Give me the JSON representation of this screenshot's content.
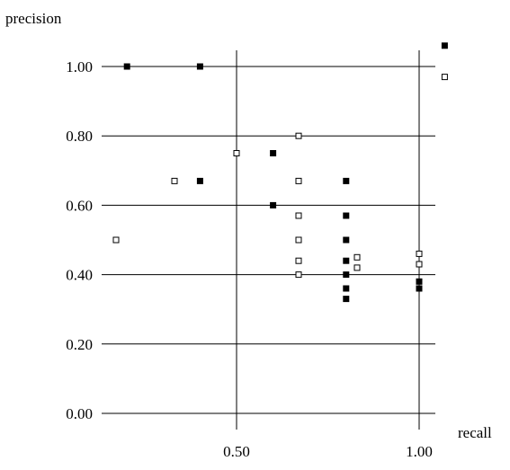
{
  "chart_data": {
    "type": "scatter",
    "title": "",
    "xlabel": "recall",
    "ylabel": "precision",
    "xlim": [
      0.13,
      1.09
    ],
    "ylim": [
      0.0,
      1.0
    ],
    "grid": true,
    "x_ticks": [
      {
        "value": 0.5,
        "label": "0.50"
      },
      {
        "value": 1.0,
        "label": "1.00"
      }
    ],
    "y_ticks": [
      {
        "value": 0.0,
        "label": "0.00"
      },
      {
        "value": 0.2,
        "label": "0.20"
      },
      {
        "value": 0.4,
        "label": "0.40"
      },
      {
        "value": 0.6,
        "label": "0.60"
      },
      {
        "value": 0.8,
        "label": "0.80"
      },
      {
        "value": 1.0,
        "label": "1.00"
      }
    ],
    "series": [
      {
        "marker": "filled-square",
        "color": "#000000",
        "points": [
          {
            "x": 0.2,
            "y": 1.0
          },
          {
            "x": 0.4,
            "y": 1.0
          },
          {
            "x": 1.07,
            "y": 1.06
          },
          {
            "x": 0.6,
            "y": 0.75
          },
          {
            "x": 0.4,
            "y": 0.67
          },
          {
            "x": 0.8,
            "y": 0.67
          },
          {
            "x": 0.6,
            "y": 0.6
          },
          {
            "x": 0.8,
            "y": 0.57
          },
          {
            "x": 0.8,
            "y": 0.5
          },
          {
            "x": 0.8,
            "y": 0.44
          },
          {
            "x": 0.8,
            "y": 0.4
          },
          {
            "x": 0.8,
            "y": 0.36
          },
          {
            "x": 0.8,
            "y": 0.33
          },
          {
            "x": 1.0,
            "y": 0.38
          },
          {
            "x": 1.0,
            "y": 0.36
          }
        ]
      },
      {
        "marker": "open-square",
        "color": "#000000",
        "points": [
          {
            "x": 1.07,
            "y": 0.97
          },
          {
            "x": 0.67,
            "y": 0.8
          },
          {
            "x": 0.5,
            "y": 0.75
          },
          {
            "x": 0.33,
            "y": 0.67
          },
          {
            "x": 0.67,
            "y": 0.67
          },
          {
            "x": 0.67,
            "y": 0.57
          },
          {
            "x": 0.17,
            "y": 0.5
          },
          {
            "x": 0.67,
            "y": 0.5
          },
          {
            "x": 0.67,
            "y": 0.44
          },
          {
            "x": 0.67,
            "y": 0.4
          },
          {
            "x": 0.83,
            "y": 0.45
          },
          {
            "x": 0.83,
            "y": 0.42
          },
          {
            "x": 1.0,
            "y": 0.46
          },
          {
            "x": 1.0,
            "y": 0.43
          }
        ]
      }
    ]
  }
}
